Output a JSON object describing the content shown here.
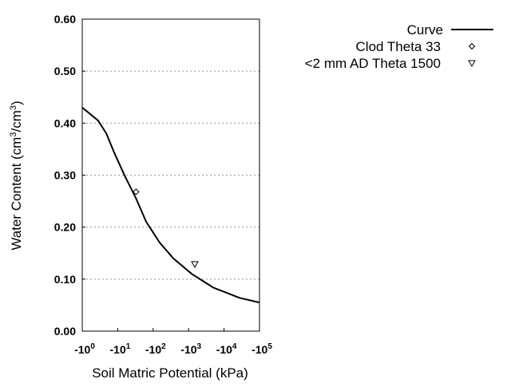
{
  "chart_data": {
    "type": "line",
    "title": "",
    "xlabel": "Soil Matric Potential (kPa)",
    "ylabel": "Water Content (cm³/cm³)",
    "x_scale": "log",
    "x_tick_labels": [
      "-10^0",
      "-10^1",
      "-10^2",
      "-10^3",
      "-10^4",
      "-10^5"
    ],
    "xlim": [
      -1,
      -100000
    ],
    "ylim": [
      0,
      0.6
    ],
    "y_ticks": [
      0.0,
      0.1,
      0.2,
      0.3,
      0.4,
      0.5,
      0.6
    ],
    "y_tick_labels": [
      "0.00",
      "0.10",
      "0.20",
      "0.30",
      "0.40",
      "0.50",
      "0.60"
    ],
    "grid": "horizontal dotted",
    "legend_placement": "right",
    "series": [
      {
        "name": "Curve",
        "kind": "line",
        "color": "#000000",
        "x": [
          -1,
          -2.8,
          -4.8,
          -7.9,
          -16,
          -32,
          -63,
          -150,
          -370,
          -1230,
          -4900,
          -27500,
          -100000
        ],
        "y": [
          0.43,
          0.405,
          0.38,
          0.344,
          0.298,
          0.257,
          0.211,
          0.171,
          0.14,
          0.11,
          0.084,
          0.064,
          0.055
        ]
      },
      {
        "name": "Clod Theta 33",
        "kind": "scatter",
        "marker": "diamond",
        "x": [
          -33
        ],
        "y": [
          0.268
        ]
      },
      {
        "name": "<2 mm AD Theta 1500",
        "kind": "scatter",
        "marker": "triangle-down",
        "x": [
          -1500
        ],
        "y": [
          0.129
        ]
      }
    ]
  }
}
